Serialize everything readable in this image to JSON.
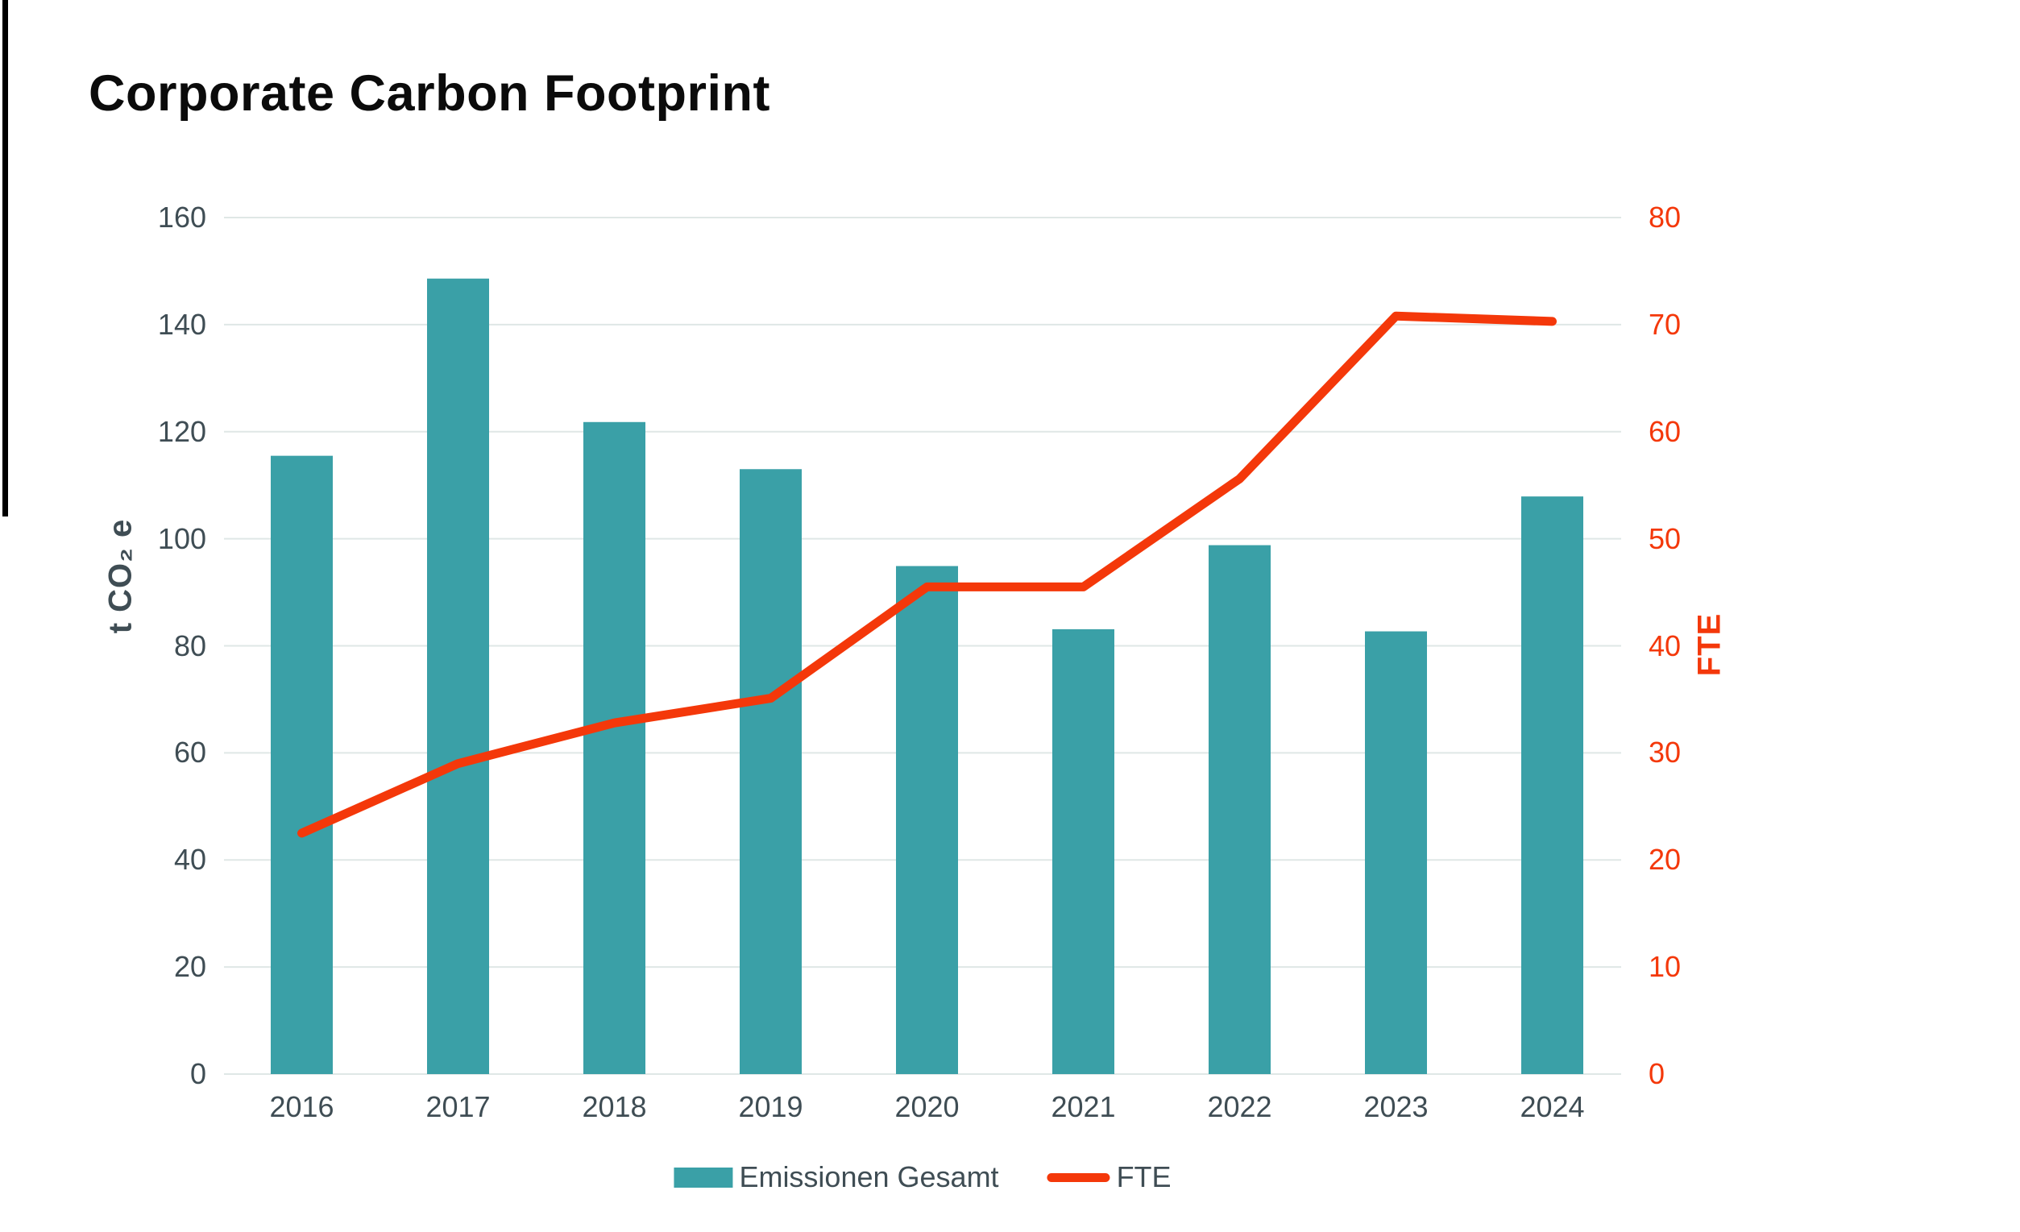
{
  "title": "Corporate Carbon Footprint",
  "legend": {
    "bar_label": "Emissionen Gesamt",
    "line_label": "FTE"
  },
  "colors": {
    "bar": "#3AA0A7",
    "line": "#F4380A",
    "axis_text": "#3F4D54",
    "grid": "#DFE7E6",
    "title": "#0B0B0B"
  },
  "chart_data": {
    "type": "bar",
    "subtype": "bar+line dual axis",
    "title": "Corporate Carbon Footprint",
    "categories": [
      "2016",
      "2017",
      "2018",
      "2019",
      "2020",
      "2021",
      "2022",
      "2023",
      "2024"
    ],
    "series": [
      {
        "name": "Emissionen Gesamt",
        "type": "bar",
        "axis": "left",
        "color": "#3AA0A7",
        "values": [
          115.5,
          148.6,
          121.8,
          113.0,
          94.9,
          83.1,
          98.8,
          82.7,
          107.9
        ]
      },
      {
        "name": "FTE",
        "type": "line",
        "axis": "right",
        "color": "#F4380A",
        "values": [
          22.5,
          29.0,
          32.8,
          35.1,
          45.5,
          45.5,
          55.6,
          70.8,
          70.3
        ]
      }
    ],
    "left_axis": {
      "label": "t CO₂ e",
      "min": 0,
      "max": 160,
      "step": 20
    },
    "right_axis": {
      "label": "FTE",
      "min": 0,
      "max": 80,
      "step": 10
    },
    "grid": true,
    "legend_position": "bottom"
  }
}
